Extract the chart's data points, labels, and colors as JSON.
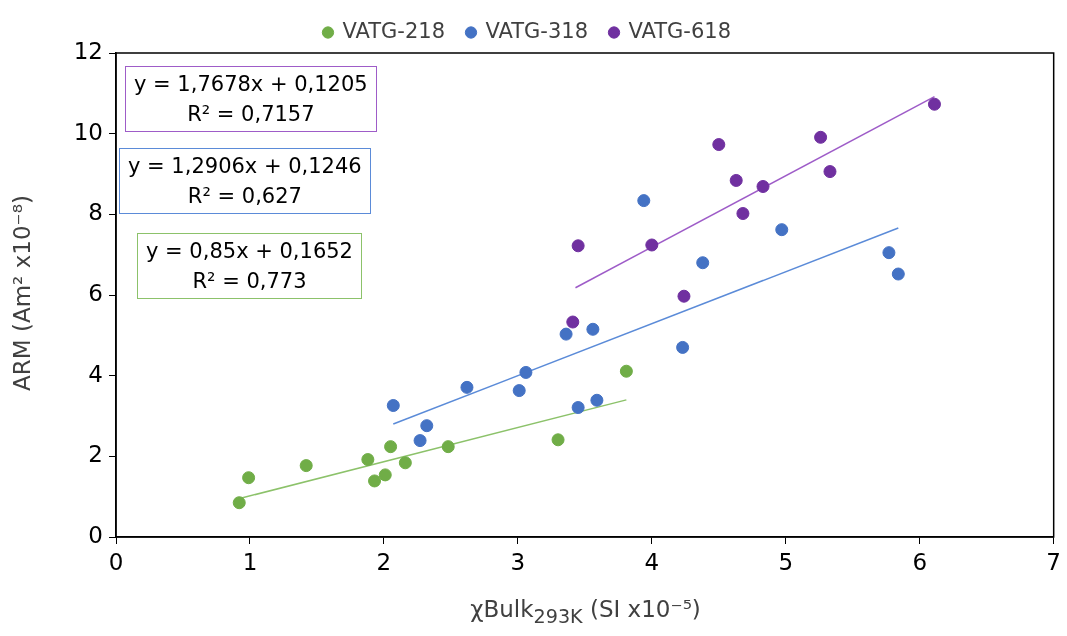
{
  "chart_data": {
    "type": "scatter",
    "xlabel": "χBulk$_{293K}$ (SI x10⁻⁵)",
    "ylabel": "ARM (Am² x10⁻⁸)",
    "xlim": [
      0,
      7
    ],
    "xticks": [
      0,
      1,
      2,
      3,
      4,
      5,
      6,
      7
    ],
    "ylim": [
      0,
      12
    ],
    "yticks": [
      0,
      2,
      4,
      6,
      8,
      10,
      12
    ],
    "grid": false,
    "legend": "top",
    "series": [
      {
        "name": "VATG-218",
        "marker": "circle",
        "color": "#70ad47",
        "x": [
          0.92,
          0.99,
          1.42,
          1.88,
          1.93,
          2.01,
          2.05,
          2.16,
          2.48,
          3.3,
          3.81
        ],
        "values": [
          0.85,
          1.47,
          1.77,
          1.92,
          1.39,
          1.54,
          2.24,
          1.84,
          2.24,
          2.41,
          4.11
        ]
      },
      {
        "name": "VATG-318",
        "marker": "circle",
        "color": "#4472c4",
        "x": [
          2.07,
          2.32,
          2.27,
          2.62,
          3.01,
          3.06,
          3.36,
          3.56,
          3.45,
          3.59,
          4.23,
          3.94,
          4.38,
          4.97,
          5.77,
          5.84
        ],
        "values": [
          3.26,
          2.76,
          2.39,
          3.71,
          3.63,
          4.08,
          5.03,
          5.15,
          3.21,
          3.39,
          4.7,
          8.34,
          6.8,
          7.62,
          7.05,
          6.52
        ]
      },
      {
        "name": "VATG-618",
        "marker": "circle",
        "color": "#7030a0",
        "x": [
          3.41,
          3.45,
          4.0,
          4.24,
          4.5,
          4.63,
          4.68,
          4.83,
          5.26,
          5.33,
          6.11
        ],
        "values": [
          5.33,
          7.22,
          7.24,
          5.97,
          9.73,
          8.84,
          8.02,
          8.69,
          9.91,
          9.06,
          10.73
        ]
      },
      {
        "type": "line",
        "marker": "none",
        "color": "#9e5cc8",
        "x": [
          3.43,
          6.11
        ],
        "values": [
          6.18,
          10.92
        ]
      },
      {
        "type": "line",
        "marker": "none",
        "color": "#5b8bd8",
        "x": [
          2.07,
          5.84
        ],
        "values": [
          2.8,
          7.66
        ]
      },
      {
        "type": "line",
        "marker": "none",
        "color": "#8cc26a",
        "x": [
          0.93,
          3.81
        ],
        "values": [
          0.96,
          3.4
        ]
      }
    ],
    "annotations": [
      "y = 1,7678x + 0,1205\nR² = 0,7157",
      "y = 1,2906x + 0,1246\nR² = 0,627",
      "y = 0,85x + 0,1652\nR² = 0,773"
    ]
  }
}
